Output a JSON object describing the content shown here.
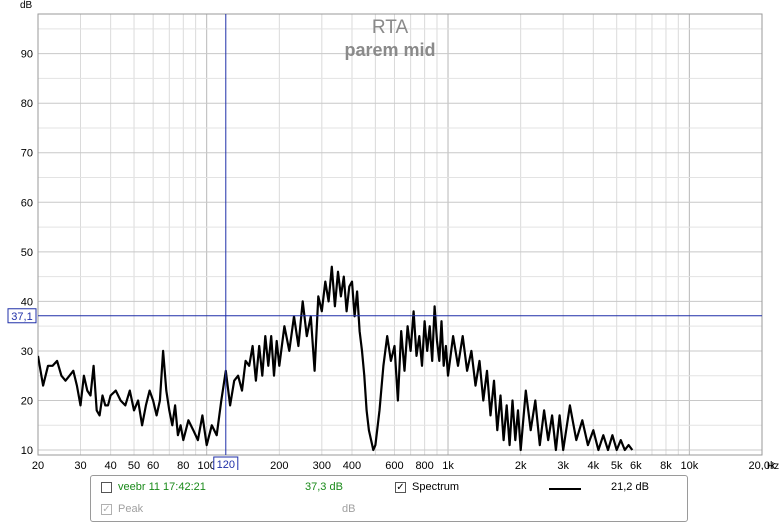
{
  "chart_data": {
    "type": "line",
    "title": "RTA",
    "subtitle": "parem mid",
    "ylabel": "dB",
    "xlabel": "Hz",
    "x_scale": "log",
    "xlim": [
      20,
      20000
    ],
    "ylim": [
      9,
      98
    ],
    "y_ticks": [
      10,
      20,
      30,
      40,
      50,
      60,
      70,
      80,
      90
    ],
    "x_tick_labels": [
      {
        "v": 20,
        "t": "20"
      },
      {
        "v": 30,
        "t": "30"
      },
      {
        "v": 40,
        "t": "40"
      },
      {
        "v": 50,
        "t": "50"
      },
      {
        "v": 60,
        "t": "60"
      },
      {
        "v": 80,
        "t": "80"
      },
      {
        "v": 100,
        "t": "100"
      },
      {
        "v": 200,
        "t": "200"
      },
      {
        "v": 300,
        "t": "300"
      },
      {
        "v": 400,
        "t": "400"
      },
      {
        "v": 600,
        "t": "600"
      },
      {
        "v": 800,
        "t": "800"
      },
      {
        "v": 1000,
        "t": "1k"
      },
      {
        "v": 2000,
        "t": "2k"
      },
      {
        "v": 3000,
        "t": "3k"
      },
      {
        "v": 4000,
        "t": "4k"
      },
      {
        "v": 5000,
        "t": "5k"
      },
      {
        "v": 6000,
        "t": "6k"
      },
      {
        "v": 8000,
        "t": "8k"
      },
      {
        "v": 10000,
        "t": "10k"
      },
      {
        "v": 20000,
        "t": "20,0k"
      }
    ],
    "cursor": {
      "x": 120,
      "y": 37.1,
      "x_label": "120",
      "y_label": "37,1"
    },
    "grid": true,
    "series": [
      {
        "name": "Spectrum",
        "color": "#000000",
        "points": [
          [
            20,
            29
          ],
          [
            21,
            23
          ],
          [
            22,
            27
          ],
          [
            23,
            27
          ],
          [
            24,
            28
          ],
          [
            25,
            25
          ],
          [
            26,
            24
          ],
          [
            27,
            25
          ],
          [
            28,
            26
          ],
          [
            29,
            23
          ],
          [
            30,
            19
          ],
          [
            31,
            25
          ],
          [
            32,
            22
          ],
          [
            33,
            21
          ],
          [
            34,
            27
          ],
          [
            35,
            18
          ],
          [
            36,
            17
          ],
          [
            37,
            21
          ],
          [
            38,
            19
          ],
          [
            39,
            19
          ],
          [
            40,
            21
          ],
          [
            42,
            22
          ],
          [
            44,
            20
          ],
          [
            46,
            19
          ],
          [
            48,
            22
          ],
          [
            50,
            18
          ],
          [
            52,
            20
          ],
          [
            54,
            15
          ],
          [
            56,
            19
          ],
          [
            58,
            22
          ],
          [
            60,
            20
          ],
          [
            62,
            17
          ],
          [
            64,
            20
          ],
          [
            66,
            30
          ],
          [
            68,
            22
          ],
          [
            70,
            18
          ],
          [
            72,
            15
          ],
          [
            74,
            19
          ],
          [
            76,
            13
          ],
          [
            78,
            15
          ],
          [
            80,
            12
          ],
          [
            84,
            16
          ],
          [
            88,
            14
          ],
          [
            92,
            12
          ],
          [
            96,
            17
          ],
          [
            100,
            11
          ],
          [
            105,
            15
          ],
          [
            110,
            13
          ],
          [
            115,
            20
          ],
          [
            120,
            26
          ],
          [
            125,
            19
          ],
          [
            130,
            24
          ],
          [
            135,
            25
          ],
          [
            140,
            22
          ],
          [
            145,
            28
          ],
          [
            150,
            27
          ],
          [
            155,
            31
          ],
          [
            160,
            24
          ],
          [
            165,
            31
          ],
          [
            170,
            25
          ],
          [
            175,
            33
          ],
          [
            180,
            27
          ],
          [
            185,
            33
          ],
          [
            190,
            25
          ],
          [
            195,
            32
          ],
          [
            200,
            27
          ],
          [
            210,
            35
          ],
          [
            220,
            30
          ],
          [
            230,
            37
          ],
          [
            240,
            31
          ],
          [
            250,
            40
          ],
          [
            260,
            33
          ],
          [
            270,
            37
          ],
          [
            280,
            26
          ],
          [
            290,
            41
          ],
          [
            300,
            38
          ],
          [
            310,
            44
          ],
          [
            320,
            40
          ],
          [
            330,
            47
          ],
          [
            340,
            39
          ],
          [
            350,
            46
          ],
          [
            360,
            41
          ],
          [
            370,
            45
          ],
          [
            380,
            38
          ],
          [
            390,
            43
          ],
          [
            400,
            44
          ],
          [
            410,
            37
          ],
          [
            420,
            42
          ],
          [
            430,
            34
          ],
          [
            440,
            30
          ],
          [
            450,
            25
          ],
          [
            460,
            18
          ],
          [
            470,
            14
          ],
          [
            480,
            12
          ],
          [
            490,
            10
          ],
          [
            500,
            11
          ],
          [
            520,
            18
          ],
          [
            540,
            27
          ],
          [
            560,
            33
          ],
          [
            580,
            28
          ],
          [
            600,
            31
          ],
          [
            620,
            20
          ],
          [
            640,
            34
          ],
          [
            660,
            26
          ],
          [
            680,
            35
          ],
          [
            700,
            30
          ],
          [
            720,
            38
          ],
          [
            740,
            29
          ],
          [
            760,
            33
          ],
          [
            780,
            27
          ],
          [
            800,
            36
          ],
          [
            820,
            30
          ],
          [
            840,
            35
          ],
          [
            860,
            28
          ],
          [
            880,
            39
          ],
          [
            900,
            32
          ],
          [
            920,
            28
          ],
          [
            940,
            36
          ],
          [
            960,
            27
          ],
          [
            980,
            31
          ],
          [
            1000,
            25
          ],
          [
            1050,
            33
          ],
          [
            1100,
            27
          ],
          [
            1150,
            33
          ],
          [
            1200,
            26
          ],
          [
            1250,
            30
          ],
          [
            1300,
            23
          ],
          [
            1350,
            28
          ],
          [
            1400,
            20
          ],
          [
            1450,
            26
          ],
          [
            1500,
            17
          ],
          [
            1550,
            24
          ],
          [
            1600,
            14
          ],
          [
            1650,
            21
          ],
          [
            1700,
            12
          ],
          [
            1750,
            19
          ],
          [
            1800,
            11
          ],
          [
            1850,
            20
          ],
          [
            1900,
            12
          ],
          [
            1950,
            18
          ],
          [
            2000,
            10
          ],
          [
            2100,
            22
          ],
          [
            2200,
            14
          ],
          [
            2300,
            20
          ],
          [
            2400,
            11
          ],
          [
            2500,
            18
          ],
          [
            2600,
            12
          ],
          [
            2700,
            17
          ],
          [
            2800,
            10
          ],
          [
            2900,
            17
          ],
          [
            3000,
            10
          ],
          [
            3200,
            19
          ],
          [
            3400,
            12
          ],
          [
            3600,
            16
          ],
          [
            3800,
            11
          ],
          [
            4000,
            14
          ],
          [
            4200,
            10
          ],
          [
            4400,
            13
          ],
          [
            4600,
            10
          ],
          [
            4800,
            13
          ],
          [
            5000,
            10
          ],
          [
            5200,
            12
          ],
          [
            5400,
            10
          ],
          [
            5600,
            11
          ],
          [
            5800,
            10
          ]
        ]
      }
    ]
  },
  "legend": {
    "row1": {
      "timestamp": "veebr 11 17:42:21",
      "value": "37,3 dB",
      "spectrum_label": "Spectrum",
      "spectrum_checked": "✓",
      "spectrum_value": "21,2 dB"
    },
    "row2": {
      "peak_label": "Peak",
      "peak_checked": "✓",
      "peak_value": "dB"
    }
  }
}
